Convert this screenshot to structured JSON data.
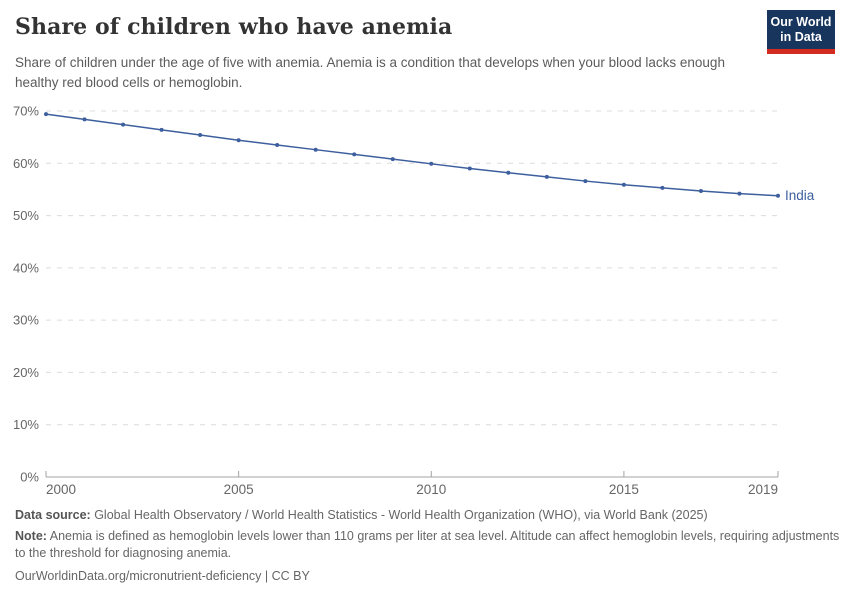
{
  "header": {
    "title": "Share of children who have anemia",
    "subtitle": "Share of children under the age of five with anemia. Anemia is a condition that develops when your blood lacks enough healthy red blood cells or hemoglobin."
  },
  "logo": {
    "line1": "Our World",
    "line2": "in Data",
    "bg_color": "#18355d",
    "bar_color": "#d42b21",
    "text_color": "#ffffff"
  },
  "chart_data": {
    "type": "line",
    "title": "Share of children who have anemia",
    "x": [
      2000,
      2001,
      2002,
      2003,
      2004,
      2005,
      2006,
      2007,
      2008,
      2009,
      2010,
      2011,
      2012,
      2013,
      2014,
      2015,
      2016,
      2017,
      2018,
      2019
    ],
    "series": [
      {
        "name": "India",
        "color": "#3d5f9e",
        "values": [
          69.4,
          68.4,
          67.4,
          66.4,
          65.4,
          64.4,
          63.5,
          62.6,
          61.7,
          60.8,
          59.9,
          59.0,
          58.2,
          57.4,
          56.6,
          55.9,
          55.3,
          54.7,
          54.2,
          53.8
        ]
      }
    ],
    "xlabel": "",
    "ylabel": "",
    "ylim": [
      0,
      70
    ],
    "yticks": [
      0,
      10,
      20,
      30,
      40,
      50,
      60,
      70
    ],
    "ytick_suffix": "%",
    "xticks": [
      2000,
      2005,
      2010,
      2015,
      2019
    ],
    "grid": true,
    "legend": "end-of-line label",
    "grid_color": "#dcdcdc",
    "axis_color": "#a3a3a3",
    "tick_label_color": "#666666"
  },
  "footer": {
    "datasource_label": "Data source:",
    "datasource_text": " Global Health Observatory / World Health Statistics - World Health Organization (WHO), via World Bank (2025)",
    "note_label": "Note:",
    "note_text": " Anemia is defined as hemoglobin levels lower than 110 grams per liter at sea level. Altitude can affect hemoglobin levels, requiring adjustments to the threshold for diagnosing anemia.",
    "license_line": "OurWorldinData.org/micronutrient-deficiency | CC BY"
  }
}
